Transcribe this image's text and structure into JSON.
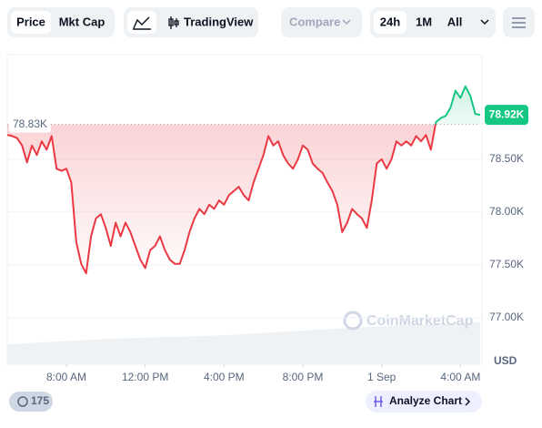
{
  "toolbar": {
    "tabs": [
      "Price",
      "Mkt Cap"
    ],
    "view": "TradingView",
    "compare": "Compare",
    "ranges": [
      "24h",
      "1M",
      "All"
    ]
  },
  "footer": {
    "events": "175",
    "analyze": "Analyze Chart"
  },
  "watermark": "CoinMarketCap",
  "chart_data": {
    "type": "line",
    "values": [
      78730,
      78720,
      78700,
      78630,
      78470,
      78630,
      78540,
      78670,
      78590,
      78720,
      78410,
      78390,
      78410,
      78280,
      77720,
      77510,
      77420,
      77770,
      77940,
      77980,
      77850,
      77680,
      77900,
      77770,
      77900,
      77810,
      77680,
      77550,
      77470,
      77640,
      77680,
      77770,
      77640,
      77550,
      77510,
      77510,
      77640,
      77810,
      77940,
      78030,
      77980,
      78070,
      78030,
      78110,
      78070,
      78160,
      78200,
      78240,
      78160,
      78110,
      78280,
      78410,
      78540,
      78720,
      78630,
      78670,
      78540,
      78460,
      78410,
      78500,
      78630,
      78590,
      78460,
      78410,
      78370,
      78280,
      78200,
      78070,
      77810,
      77900,
      78030,
      77980,
      77940,
      77850,
      78110,
      78460,
      78500,
      78410,
      78500,
      78670,
      78630,
      78670,
      78630,
      78720,
      78670,
      78730,
      78590,
      78850,
      78890,
      78910,
      78990,
      79150,
      79080,
      79190,
      79100,
      78930,
      78920
    ],
    "up_color": "#16c784",
    "down_color": "#ea3943",
    "reference_line": {
      "value": 78830,
      "label": "78.83K"
    },
    "current_price": {
      "value": 78920,
      "label": "78.92K"
    },
    "xlim": [
      0,
      96
    ],
    "xticks": [
      {
        "value": 12,
        "label": "8:00 AM"
      },
      {
        "value": 28,
        "label": "12:00 PM"
      },
      {
        "value": 44,
        "label": "4:00 PM"
      },
      {
        "value": 60,
        "label": "8:00 PM"
      },
      {
        "value": 76,
        "label": "1 Sep"
      },
      {
        "value": 92,
        "label": "4:00 AM"
      }
    ],
    "ylim": [
      76560,
      79490
    ],
    "yticks": [
      {
        "value": 77000,
        "label": "77.00K"
      },
      {
        "value": 77500,
        "label": "77.50K"
      },
      {
        "value": 78000,
        "label": "78.00K"
      },
      {
        "value": 78500,
        "label": "78.50K"
      }
    ],
    "y_unit": "USD",
    "grid": true
  }
}
